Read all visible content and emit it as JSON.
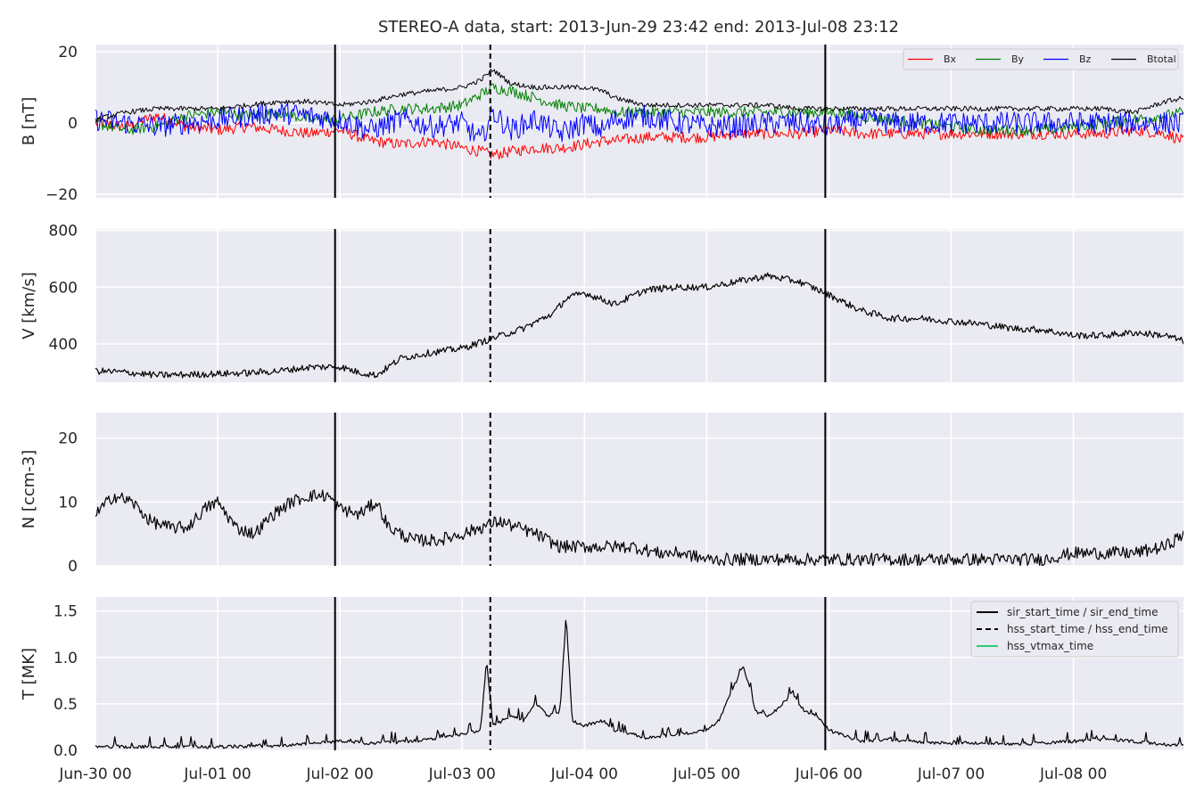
{
  "title": "STEREO-A data, start: 2013-Jun-29 23:42  end: 2013-Jul-08 23:12",
  "x_axis": {
    "unit": "days since 2013-Jun-30 00:00",
    "range": [
      0,
      8.9
    ],
    "ticks": [
      0,
      1,
      2,
      3,
      4,
      5,
      6,
      7,
      8
    ],
    "tick_labels": [
      "Jun-30 00",
      "Jul-01 00",
      "Jul-02 00",
      "Jul-03 00",
      "Jul-04 00",
      "Jul-05 00",
      "Jul-06 00",
      "Jul-07 00",
      "Jul-08 00"
    ]
  },
  "events": {
    "sir_start": 1.96,
    "hss_start": 3.23,
    "sir_end": 5.97
  },
  "colors": {
    "panel_bg": "#eaeaf2",
    "grid": "#ffffff",
    "bx": "#ff0000",
    "by": "#008000",
    "bz": "#0000ff",
    "btotal": "#000000",
    "vtmax": "#2ecc71"
  },
  "chart_data": [
    {
      "type": "line",
      "ylabel": "B [nT]",
      "ylim": [
        -21,
        22
      ],
      "yticks": [
        -20,
        0,
        20
      ],
      "ytick_labels": [
        "−20",
        "0",
        "20"
      ],
      "legend": {
        "placement": "top-right",
        "entries": [
          "Bx",
          "By",
          "Bz",
          "Btotal"
        ]
      },
      "x": [
        0,
        0.25,
        0.5,
        0.75,
        1,
        1.25,
        1.5,
        1.75,
        2,
        2.25,
        2.5,
        2.75,
        3,
        3.15,
        3.25,
        3.4,
        3.6,
        3.8,
        4,
        4.15,
        4.25,
        4.5,
        4.75,
        5,
        5.25,
        5.5,
        5.75,
        6,
        6.25,
        6.5,
        6.75,
        7,
        7.25,
        7.5,
        7.75,
        8,
        8.25,
        8.5,
        8.75,
        8.9
      ],
      "series": [
        {
          "name": "Bx",
          "color": "#ff0000",
          "values": [
            0,
            -1,
            2,
            -1,
            -2,
            -1,
            -2,
            -3,
            -2,
            -5,
            -6,
            -5,
            -7,
            -8,
            -9,
            -8,
            -7,
            -7,
            -6,
            -5,
            -5,
            -4,
            -4,
            -4,
            -3,
            -3,
            -3,
            -2,
            -3,
            -3,
            -3,
            -3,
            -3,
            -3,
            -3,
            -3,
            -3,
            -2,
            -3,
            -5
          ]
        },
        {
          "name": "By",
          "color": "#008000",
          "values": [
            0,
            -2,
            -1,
            2,
            3,
            2,
            3,
            1,
            1,
            3,
            4,
            4,
            5,
            8,
            10,
            9,
            7,
            5,
            4,
            4,
            3,
            3,
            3,
            3,
            3,
            3,
            3,
            3,
            2,
            1,
            0,
            -1,
            -2,
            -2,
            -2,
            -1,
            0,
            1,
            2,
            3
          ]
        },
        {
          "name": "Bz",
          "color": "#0000ff",
          "values": [
            1,
            0,
            -1,
            0,
            1,
            2,
            3,
            2,
            1,
            -2,
            1,
            -1,
            0,
            -5,
            3,
            -2,
            1,
            -3,
            0,
            -2,
            1,
            2,
            0,
            -1,
            -1,
            0,
            0,
            -1,
            1,
            0,
            0,
            0,
            0,
            0,
            0,
            0,
            0,
            0,
            0,
            0
          ]
        },
        {
          "name": "Btotal",
          "color": "#000000",
          "values": [
            1,
            3,
            4,
            4,
            4,
            5,
            6,
            6,
            5,
            6,
            8,
            9,
            10,
            12,
            15,
            11,
            10,
            10,
            10,
            9,
            7,
            5,
            5,
            5,
            5,
            5,
            4,
            4,
            4,
            4,
            4,
            4,
            4,
            4,
            4,
            4,
            4,
            3,
            6,
            7
          ]
        }
      ]
    },
    {
      "type": "line",
      "ylabel": "V [km/s]",
      "ylim": [
        265,
        805
      ],
      "yticks": [
        400,
        600,
        800
      ],
      "ytick_labels": [
        "400",
        "600",
        "800"
      ],
      "x": [
        0,
        0.25,
        0.5,
        0.75,
        1,
        1.25,
        1.5,
        1.75,
        2,
        2.15,
        2.3,
        2.5,
        2.75,
        3,
        3.25,
        3.5,
        3.75,
        3.85,
        4,
        4.25,
        4.5,
        4.75,
        5,
        5.25,
        5.5,
        5.75,
        5.97,
        6.25,
        6.5,
        6.75,
        7,
        7.25,
        7.5,
        7.75,
        8,
        8.25,
        8.5,
        8.75,
        8.9
      ],
      "series": [
        {
          "name": "",
          "color": "#000000",
          "values": [
            305,
            300,
            290,
            292,
            295,
            298,
            305,
            318,
            320,
            300,
            290,
            350,
            370,
            385,
            420,
            455,
            510,
            560,
            580,
            540,
            590,
            600,
            600,
            620,
            640,
            620,
            580,
            520,
            490,
            490,
            480,
            470,
            455,
            450,
            430,
            430,
            440,
            430,
            410
          ]
        }
      ]
    },
    {
      "type": "line",
      "ylabel": "N [ccm-3]",
      "ylim": [
        0,
        24
      ],
      "yticks": [
        0,
        10,
        20
      ],
      "ytick_labels": [
        "0",
        "10",
        "20"
      ],
      "x": [
        0,
        0.15,
        0.3,
        0.45,
        0.6,
        0.75,
        0.9,
        1,
        1.15,
        1.3,
        1.45,
        1.6,
        1.75,
        1.9,
        2,
        2.15,
        2.3,
        2.4,
        2.6,
        2.8,
        3,
        3.15,
        3.3,
        3.45,
        3.6,
        3.8,
        4,
        4.2,
        4.4,
        4.6,
        4.8,
        5,
        5.25,
        5.5,
        5.75,
        6,
        6.25,
        6.5,
        6.75,
        7,
        7.25,
        7.5,
        7.75,
        8,
        8.25,
        8.5,
        8.75,
        8.9
      ],
      "series": [
        {
          "name": "",
          "color": "#000000",
          "values": [
            8,
            11,
            10,
            7,
            6,
            6,
            9,
            10,
            6,
            5,
            8,
            10,
            11,
            11,
            9,
            8,
            10,
            6,
            4,
            4,
            5,
            6,
            7,
            6,
            5,
            3,
            3,
            3,
            3,
            2,
            2,
            1,
            1,
            1,
            1,
            1,
            1,
            1,
            1,
            1,
            1,
            1,
            1,
            2,
            2,
            2,
            3,
            5
          ]
        }
      ]
    },
    {
      "type": "line",
      "ylabel": "T [MK]",
      "ylim": [
        0,
        1.65
      ],
      "yticks": [
        0.0,
        0.5,
        1.0,
        1.5
      ],
      "ytick_labels": [
        "0.0",
        "0.5",
        "1.0",
        "1.5"
      ],
      "legend": {
        "placement": "top-right",
        "entries": [
          "sir_start_time / sir_end_time",
          "hss_start_time / hss_end_time",
          "hss_vtmax_time"
        ]
      },
      "x": [
        0,
        0.5,
        1,
        1.5,
        2,
        2.25,
        2.5,
        2.75,
        3,
        3.15,
        3.2,
        3.25,
        3.4,
        3.5,
        3.6,
        3.7,
        3.8,
        3.85,
        3.9,
        4,
        4.15,
        4.25,
        4.5,
        4.75,
        5,
        5.1,
        5.2,
        5.3,
        5.4,
        5.5,
        5.6,
        5.7,
        5.8,
        5.9,
        6,
        6.25,
        6.5,
        6.75,
        7,
        7.25,
        7.5,
        7.75,
        8,
        8.25,
        8.5,
        8.75,
        8.9
      ],
      "series": [
        {
          "name": "",
          "color": "#000000",
          "values": [
            0.02,
            0.02,
            0.02,
            0.03,
            0.08,
            0.06,
            0.07,
            0.1,
            0.15,
            0.2,
            0.95,
            0.25,
            0.35,
            0.3,
            0.5,
            0.35,
            0.4,
            1.43,
            0.3,
            0.25,
            0.3,
            0.2,
            0.12,
            0.15,
            0.2,
            0.3,
            0.6,
            0.9,
            0.4,
            0.35,
            0.45,
            0.6,
            0.4,
            0.35,
            0.2,
            0.08,
            0.1,
            0.07,
            0.06,
            0.06,
            0.05,
            0.06,
            0.08,
            0.1,
            0.08,
            0.04,
            0.04
          ]
        }
      ]
    }
  ]
}
